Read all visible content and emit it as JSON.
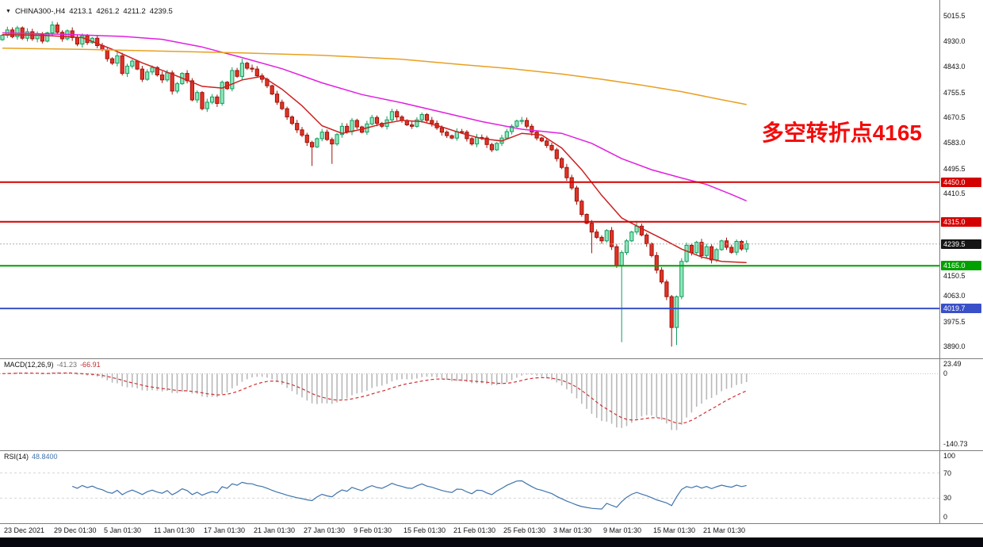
{
  "header": {
    "dropdown_icon": "▼",
    "symbol": "CHINA300-,H4",
    "open": "4213.1",
    "high": "4261.2",
    "low": "4211.2",
    "close": "4239.5"
  },
  "annotation": {
    "text": "多空转折点4165",
    "color": "#f30b0b"
  },
  "price_axis": {
    "labels": [
      {
        "t": "5015.5"
      },
      {
        "t": "4930.0"
      },
      {
        "t": "4843.0"
      },
      {
        "t": "4755.5"
      },
      {
        "t": "4670.5"
      },
      {
        "t": "4583.0"
      },
      {
        "t": "4495.5"
      },
      {
        "t": "4410.5"
      },
      {
        "t": "4150.5",
        "dy": 7
      },
      {
        "t": "4063.0"
      },
      {
        "t": "3975.5"
      },
      {
        "t": "3890.0"
      }
    ],
    "tags": [
      {
        "text": "4450.0",
        "price": 4450.0,
        "bg": "#d40000"
      },
      {
        "text": "4315.0",
        "price": 4315.0,
        "bg": "#d40000"
      },
      {
        "text": "4239.5",
        "price": 4239.5,
        "bg": "#151515"
      },
      {
        "text": "4165.0",
        "price": 4165.0,
        "bg": "#00a000"
      },
      {
        "text": "4019.7",
        "price": 4019.7,
        "bg": "#3a50c8"
      }
    ]
  },
  "chart_data": {
    "type": "candlestick",
    "title": "CHINA300- H4",
    "y_range": [
      3850,
      5070
    ],
    "first_open": 4935,
    "closes": [
      4950,
      4968,
      4945,
      4975,
      4940,
      4962,
      4938,
      4955,
      4930,
      4958,
      4985,
      4960,
      4938,
      4965,
      4942,
      4920,
      4948,
      4925,
      4940,
      4915,
      4900,
      4870,
      4855,
      4880,
      4820,
      4845,
      4862,
      4835,
      4800,
      4825,
      4840,
      4815,
      4798,
      4822,
      4760,
      4785,
      4820,
      4795,
      4730,
      4755,
      4700,
      4722,
      4740,
      4718,
      4790,
      4768,
      4830,
      4810,
      4855,
      4838,
      4835,
      4812,
      4800,
      4778,
      4750,
      4722,
      4700,
      4672,
      4650,
      4628,
      4610,
      4585,
      4570,
      4598,
      4620,
      4595,
      4580,
      4612,
      4640,
      4622,
      4660,
      4638,
      4620,
      4648,
      4670,
      4650,
      4640,
      4662,
      4690,
      4672,
      4660,
      4645,
      4640,
      4662,
      4680,
      4660,
      4650,
      4635,
      4620,
      4608,
      4600,
      4622,
      4620,
      4598,
      4580,
      4602,
      4600,
      4578,
      4560,
      4582,
      4600,
      4622,
      4640,
      4658,
      4660,
      4640,
      4620,
      4600,
      4590,
      4575,
      4560,
      4530,
      4500,
      4465,
      4430,
      4385,
      4340,
      4310,
      4280,
      4262,
      4250,
      4285,
      4230,
      4165,
      4210,
      4250,
      4280,
      4300,
      4270,
      4240,
      4200,
      4150,
      4110,
      4060,
      3955,
      4060,
      4180,
      4235,
      4210,
      4245,
      4200,
      4230,
      4185,
      4220,
      4250,
      4228,
      4211,
      4248,
      4222,
      4240
    ],
    "wick_lows": {
      "62": 4505,
      "66": 4512,
      "118": 4208,
      "124": 3905,
      "134": 3890,
      "135": 3895
    },
    "wick_highs": {
      "10": 4998,
      "48": 4870,
      "127": 4318
    },
    "hlines": [
      {
        "price": 4450.0,
        "color": "#d40000"
      },
      {
        "price": 4315.0,
        "color": "#d40000"
      },
      {
        "price": 4165.0,
        "color": "#00a000"
      },
      {
        "price": 4019.7,
        "color": "#3a50c8"
      },
      {
        "price": 4239.5,
        "color": "#b0b0b0",
        "style": "current"
      }
    ],
    "moving_averages": [
      {
        "name": "ma-fast",
        "color": "#cc2020",
        "points": [
          [
            0,
            4952
          ],
          [
            8,
            4950
          ],
          [
            16,
            4942
          ],
          [
            22,
            4902
          ],
          [
            28,
            4856
          ],
          [
            34,
            4818
          ],
          [
            40,
            4776
          ],
          [
            44,
            4770
          ],
          [
            48,
            4798
          ],
          [
            52,
            4810
          ],
          [
            56,
            4766
          ],
          [
            60,
            4710
          ],
          [
            64,
            4642
          ],
          [
            68,
            4616
          ],
          [
            72,
            4630
          ],
          [
            76,
            4648
          ],
          [
            80,
            4660
          ],
          [
            84,
            4656
          ],
          [
            88,
            4638
          ],
          [
            92,
            4616
          ],
          [
            96,
            4598
          ],
          [
            100,
            4590
          ],
          [
            104,
            4616
          ],
          [
            108,
            4610
          ],
          [
            112,
            4566
          ],
          [
            116,
            4492
          ],
          [
            120,
            4405
          ],
          [
            124,
            4328
          ],
          [
            128,
            4292
          ],
          [
            132,
            4258
          ],
          [
            136,
            4222
          ],
          [
            140,
            4195
          ],
          [
            144,
            4180
          ],
          [
            149,
            4176
          ]
        ]
      },
      {
        "name": "ma-mid",
        "color": "#e020e0",
        "points": [
          [
            0,
            4958
          ],
          [
            12,
            4953
          ],
          [
            24,
            4946
          ],
          [
            32,
            4936
          ],
          [
            40,
            4910
          ],
          [
            48,
            4874
          ],
          [
            56,
            4836
          ],
          [
            64,
            4788
          ],
          [
            72,
            4748
          ],
          [
            80,
            4720
          ],
          [
            88,
            4688
          ],
          [
            96,
            4656
          ],
          [
            104,
            4630
          ],
          [
            112,
            4616
          ],
          [
            118,
            4582
          ],
          [
            124,
            4530
          ],
          [
            130,
            4492
          ],
          [
            136,
            4464
          ],
          [
            141,
            4442
          ],
          [
            146,
            4408
          ],
          [
            149,
            4386
          ]
        ]
      },
      {
        "name": "ma-slow",
        "color": "#e8a020",
        "points": [
          [
            0,
            4906
          ],
          [
            16,
            4902
          ],
          [
            32,
            4896
          ],
          [
            48,
            4890
          ],
          [
            64,
            4882
          ],
          [
            80,
            4868
          ],
          [
            92,
            4850
          ],
          [
            102,
            4836
          ],
          [
            112,
            4818
          ],
          [
            120,
            4800
          ],
          [
            128,
            4780
          ],
          [
            136,
            4758
          ],
          [
            143,
            4734
          ],
          [
            149,
            4714
          ]
        ]
      }
    ],
    "time_labels": [
      [
        0,
        "23 Dec 2021"
      ],
      [
        10,
        "29 Dec 01:30"
      ],
      [
        20,
        "5 Jan 01:30"
      ],
      [
        30,
        "11 Jan 01:30"
      ],
      [
        40,
        "17 Jan 01:30"
      ],
      [
        50,
        "21 Jan 01:30"
      ],
      [
        60,
        "27 Jan 01:30"
      ],
      [
        70,
        "9 Feb 01:30"
      ],
      [
        80,
        "15 Feb 01:30"
      ],
      [
        90,
        "21 Feb 01:30"
      ],
      [
        100,
        "25 Feb 01:30"
      ],
      [
        110,
        "3 Mar 01:30"
      ],
      [
        120,
        "9 Mar 01:30"
      ],
      [
        130,
        "15 Mar 01:30"
      ],
      [
        140,
        "21 Mar 01:30"
      ]
    ],
    "macd": {
      "name": "MACD(12,26,9)",
      "value_main": "-41.23",
      "value_signal": "-66.91",
      "fast": 12,
      "slow": 26,
      "signal": 9,
      "ymax": 23.49,
      "ymin": -140.73,
      "axis_top": "23.49",
      "axis_zero": "0",
      "axis_bottom": "-140.73",
      "hist_color": "#b9b9b9",
      "signal_color": "#d03030"
    },
    "rsi": {
      "name": "RSI(14)",
      "value": "48.8400",
      "period": 14,
      "axis": [
        "100",
        "70",
        "30",
        "0"
      ],
      "levels": [
        70,
        30
      ],
      "color": "#3f74ad"
    }
  }
}
